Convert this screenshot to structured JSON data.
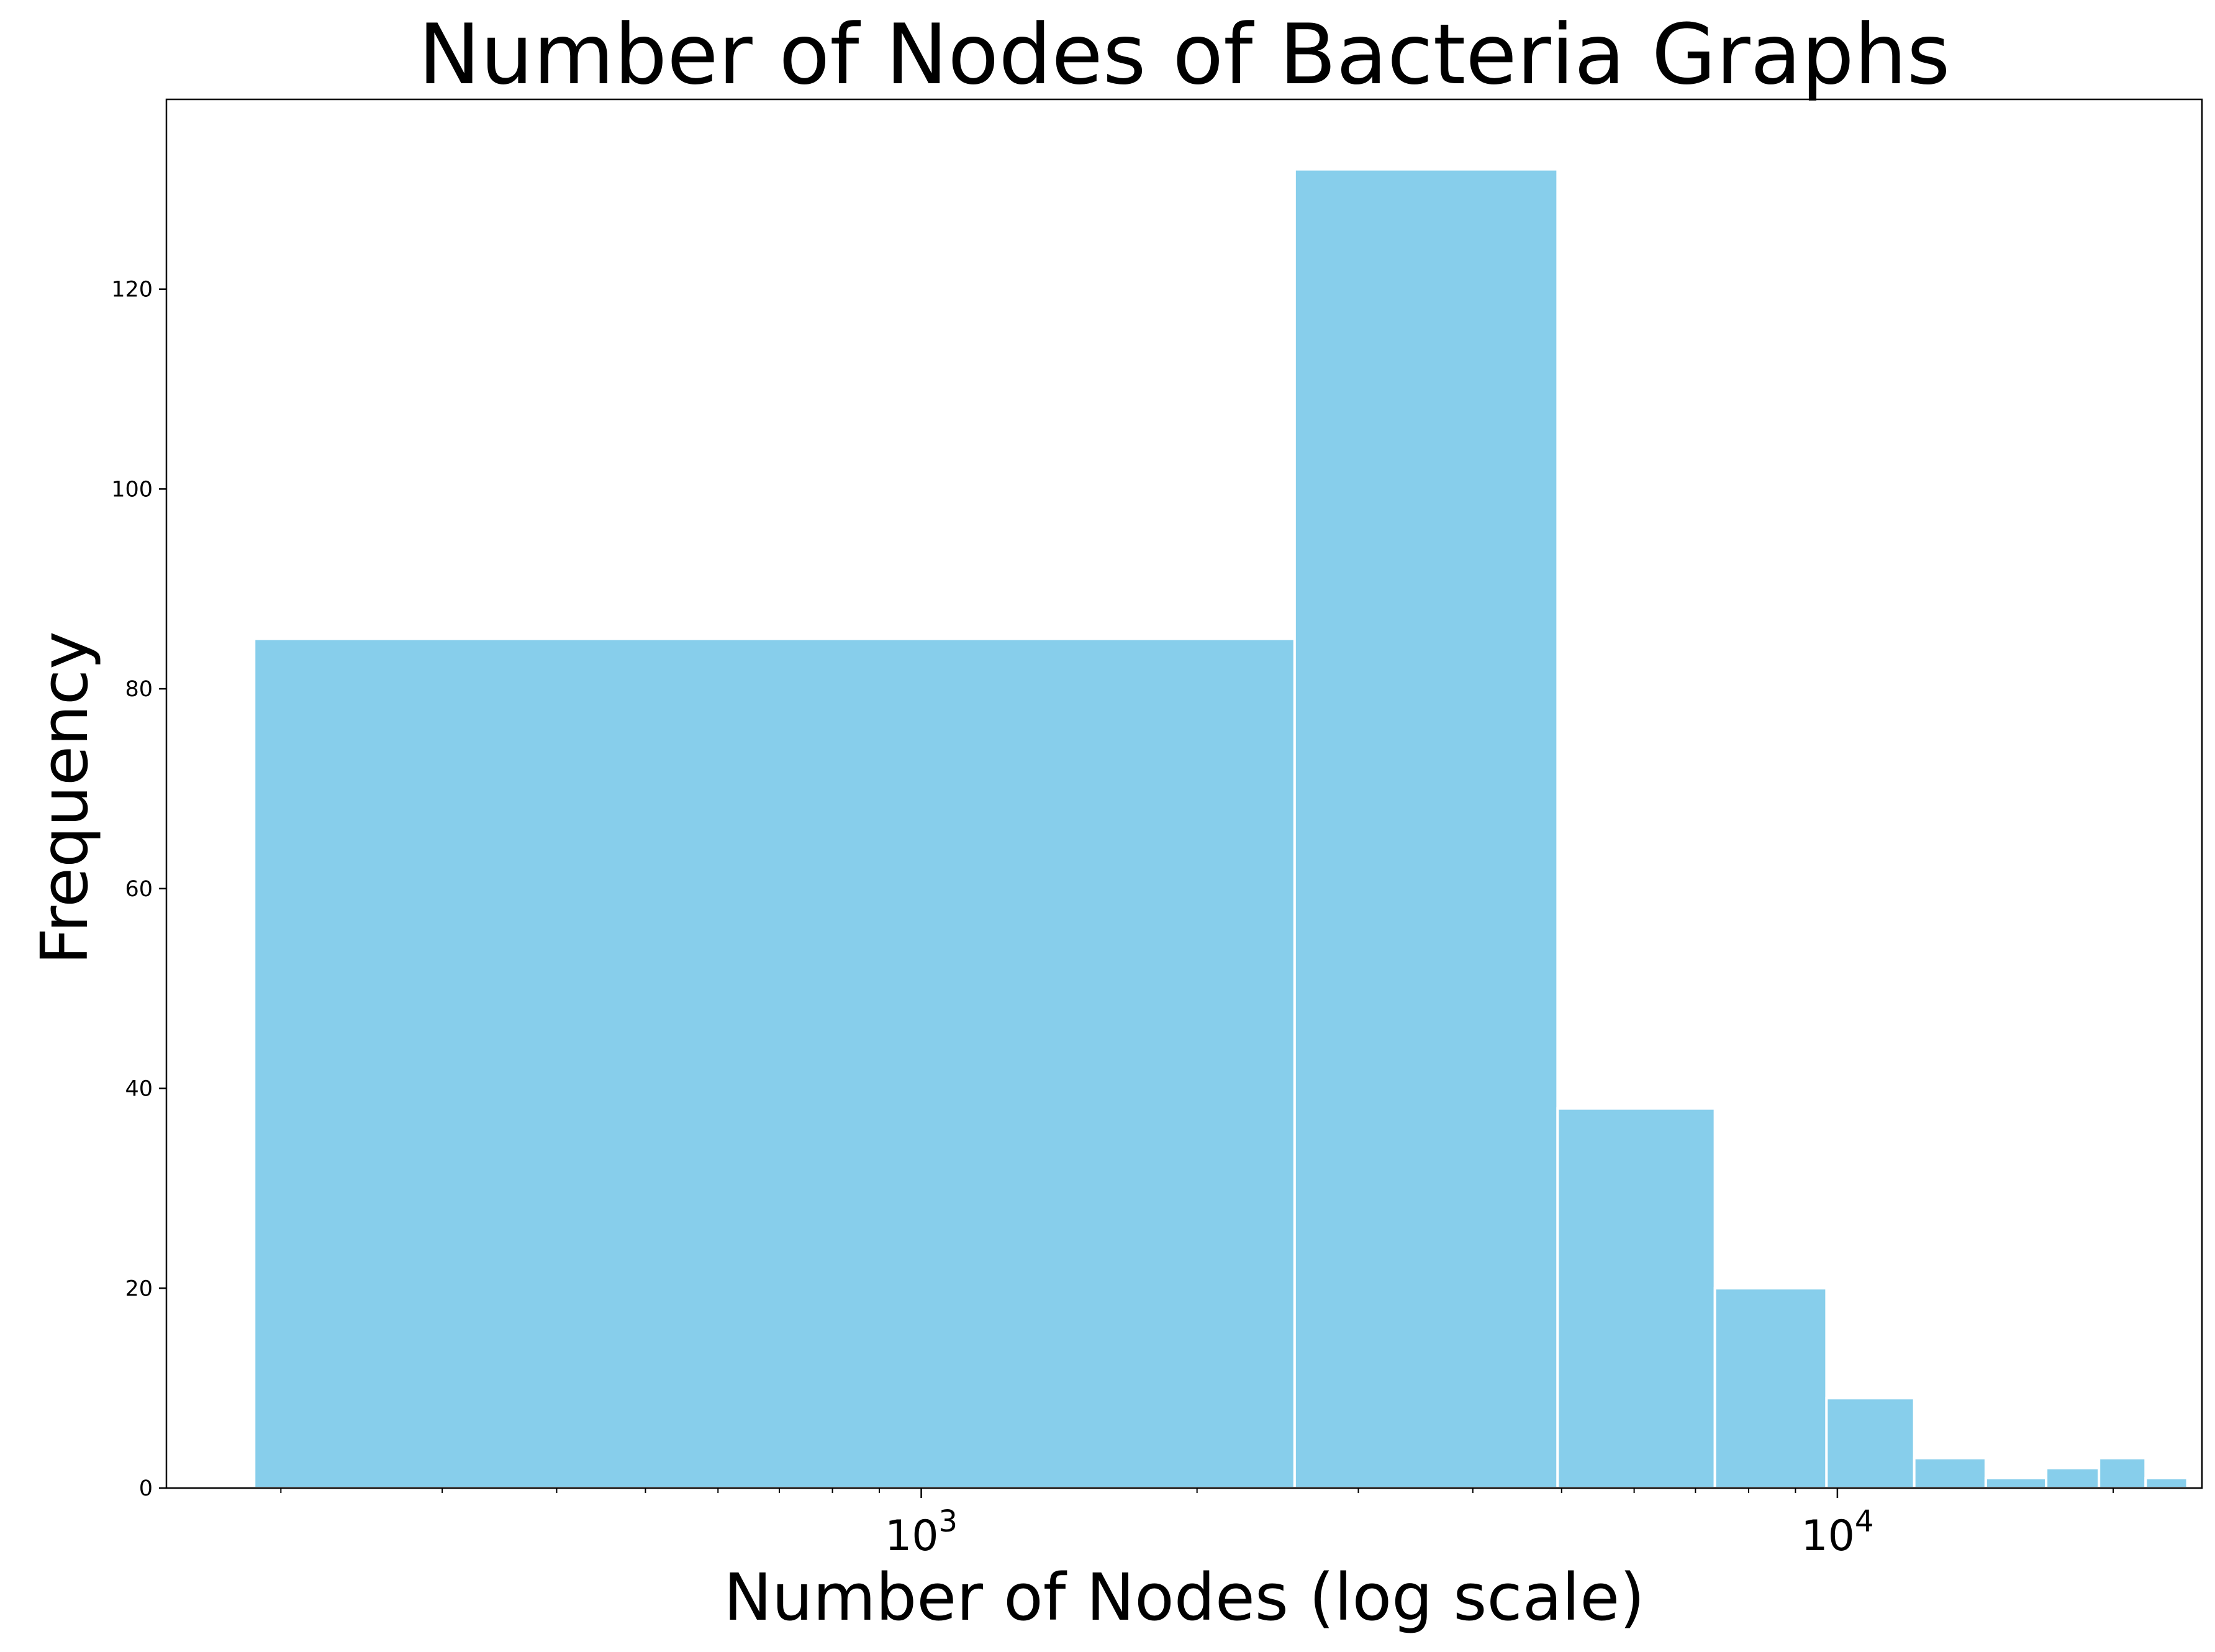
{
  "chart_data": {
    "type": "bar",
    "title": "Number of Nodes of Bacteria Graphs",
    "xlabel": "Number of Nodes (log scale)",
    "ylabel": "Frequency",
    "xscale": "log",
    "xlim": [
      150,
      25000
    ],
    "ylim": [
      0,
      139
    ],
    "xticks_major": [
      {
        "value": 1000,
        "base": "10",
        "exponent": "3"
      },
      {
        "value": 10000,
        "base": "10",
        "exponent": "4"
      }
    ],
    "xticks_minor": [
      200,
      300,
      400,
      500,
      600,
      700,
      800,
      900,
      2000,
      3000,
      4000,
      5000,
      6000,
      7000,
      8000,
      9000,
      20000
    ],
    "yticks": [
      {
        "value": 0,
        "label": "0"
      },
      {
        "value": 20,
        "label": "20"
      },
      {
        "value": 40,
        "label": "40"
      },
      {
        "value": 60,
        "label": "60"
      },
      {
        "value": 80,
        "label": "80"
      },
      {
        "value": 100,
        "label": "100"
      },
      {
        "value": 120,
        "label": "120"
      }
    ],
    "bins": [
      {
        "x0": 187,
        "x1": 2556,
        "count": 85
      },
      {
        "x0": 2556,
        "x1": 4950,
        "count": 132
      },
      {
        "x0": 4950,
        "x1": 7350,
        "count": 38
      },
      {
        "x0": 7350,
        "x1": 9730,
        "count": 20
      },
      {
        "x0": 9730,
        "x1": 12130,
        "count": 9
      },
      {
        "x0": 12130,
        "x1": 14520,
        "count": 3
      },
      {
        "x0": 14520,
        "x1": 16900,
        "count": 1
      },
      {
        "x0": 16900,
        "x1": 19300,
        "count": 2
      },
      {
        "x0": 19300,
        "x1": 21700,
        "count": 3
      },
      {
        "x0": 21700,
        "x1": 24100,
        "count": 1
      }
    ],
    "bar_color": "#87ceeb",
    "edge_color": "#ffffff",
    "grid": false,
    "legend": false
  }
}
